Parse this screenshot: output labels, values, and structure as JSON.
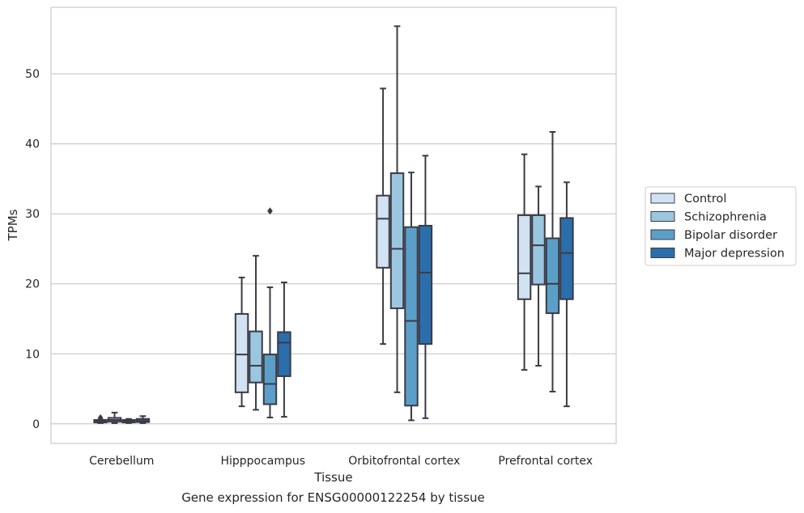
{
  "chart_data": {
    "type": "box",
    "xlabel": "Tissue",
    "ylabel": "TPMs",
    "ylim": [
      -2.8,
      59.5
    ],
    "yticks": [
      0,
      10,
      20,
      30,
      40,
      50
    ],
    "grid": "horizontal",
    "legend_position": "right-outside",
    "categories": [
      "Cerebellum",
      "Hipppocampus",
      "Orbitofrontal cortex",
      "Prefrontal cortex"
    ],
    "series": [
      {
        "name": "Control",
        "color": "#d1e2f2",
        "boxes": [
          {
            "whislo": 0.1,
            "q1": 0.2,
            "med": 0.35,
            "q3": 0.55,
            "whishi": 0.6,
            "fliers": [
              0.85
            ]
          },
          {
            "whislo": 2.5,
            "q1": 4.5,
            "med": 9.9,
            "q3": 15.7,
            "whishi": 20.9,
            "fliers": []
          },
          {
            "whislo": 11.4,
            "q1": 22.3,
            "med": 29.3,
            "q3": 32.6,
            "whishi": 47.9,
            "fliers": []
          },
          {
            "whislo": 7.7,
            "q1": 17.8,
            "med": 21.5,
            "q3": 29.8,
            "whishi": 38.5,
            "fliers": []
          }
        ]
      },
      {
        "name": "Schizophrenia",
        "color": "#9ac6df",
        "boxes": [
          {
            "whislo": 0.1,
            "q1": 0.3,
            "med": 0.55,
            "q3": 0.85,
            "whishi": 1.6,
            "fliers": []
          },
          {
            "whislo": 2.0,
            "q1": 5.9,
            "med": 8.3,
            "q3": 13.2,
            "whishi": 24.0,
            "fliers": []
          },
          {
            "whislo": 4.5,
            "q1": 16.5,
            "med": 25.0,
            "q3": 35.8,
            "whishi": 56.8,
            "fliers": []
          },
          {
            "whislo": 8.3,
            "q1": 19.9,
            "med": 25.5,
            "q3": 29.8,
            "whishi": 33.9,
            "fliers": []
          }
        ]
      },
      {
        "name": "Bipolar disorder",
        "color": "#5b9fc9",
        "boxes": [
          {
            "whislo": 0.1,
            "q1": 0.2,
            "med": 0.35,
            "q3": 0.55,
            "whishi": 0.7,
            "fliers": []
          },
          {
            "whislo": 0.9,
            "q1": 2.8,
            "med": 5.7,
            "q3": 9.9,
            "whishi": 19.5,
            "fliers": [
              30.4
            ]
          },
          {
            "whislo": 0.5,
            "q1": 2.6,
            "med": 14.7,
            "q3": 28.1,
            "whishi": 35.9,
            "fliers": []
          },
          {
            "whislo": 4.6,
            "q1": 15.8,
            "med": 20.0,
            "q3": 26.5,
            "whishi": 41.7,
            "fliers": []
          }
        ]
      },
      {
        "name": "Major depression",
        "color": "#2b6eac",
        "boxes": [
          {
            "whislo": 0.1,
            "q1": 0.25,
            "med": 0.4,
            "q3": 0.7,
            "whishi": 1.1,
            "fliers": []
          },
          {
            "whislo": 1.0,
            "q1": 6.8,
            "med": 11.6,
            "q3": 13.1,
            "whishi": 20.2,
            "fliers": []
          },
          {
            "whislo": 0.8,
            "q1": 11.4,
            "med": 21.6,
            "q3": 28.3,
            "whishi": 38.3,
            "fliers": []
          },
          {
            "whislo": 2.5,
            "q1": 17.8,
            "med": 24.4,
            "q3": 29.4,
            "whishi": 34.5,
            "fliers": []
          }
        ]
      }
    ]
  },
  "caption": "Gene expression for ENSG00000122254 by tissue"
}
